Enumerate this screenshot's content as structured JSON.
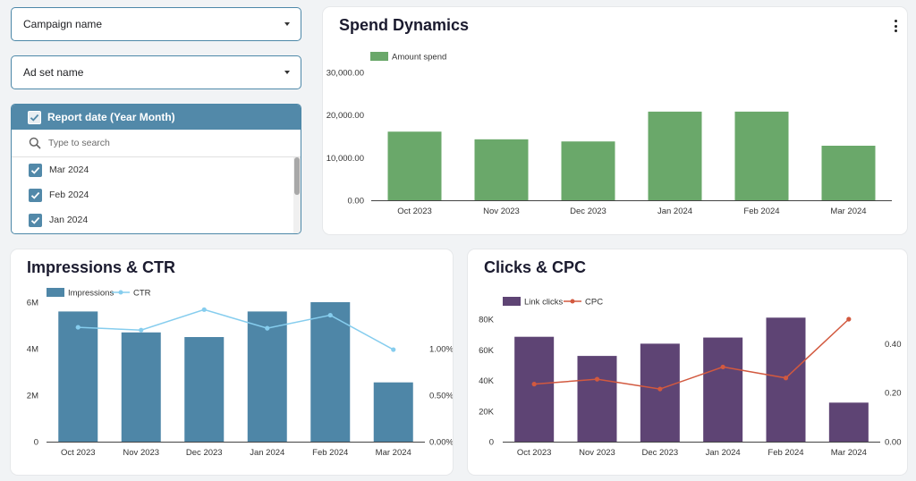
{
  "filters": {
    "campaign_label": "Campaign name",
    "adset_label": "Ad set name",
    "report_date": {
      "title": "Report date (Year Month)",
      "search_placeholder": "Type to search",
      "items": [
        "Mar 2024",
        "Feb 2024",
        "Jan 2024"
      ]
    }
  },
  "colors": {
    "spend": "#6aa86a",
    "impressions": "#4e86a7",
    "ctr": "#86cdee",
    "clicks": "#5e4474",
    "cpc": "#d2593f",
    "accent": "#5289a9"
  },
  "chart_data": [
    {
      "type": "bar",
      "title": "Spend Dynamics",
      "categories": [
        "Oct 2023",
        "Nov 2023",
        "Dec 2023",
        "Jan 2024",
        "Feb 2024",
        "Mar 2024"
      ],
      "series": [
        {
          "name": "Amount spend",
          "values": [
            16100,
            14300,
            13800,
            20800,
            20800,
            12800
          ]
        }
      ],
      "ylim": [
        0,
        30000
      ],
      "yticks": [
        "0.00",
        "10,000.00",
        "20,000.00",
        "30,000.00"
      ],
      "legend": "top-left"
    },
    {
      "type": "bar",
      "title": "Impressions & CTR",
      "categories": [
        "Oct 2023",
        "Nov 2023",
        "Dec 2023",
        "Jan 2024",
        "Feb 2024",
        "Mar 2024"
      ],
      "series": [
        {
          "name": "Impressions",
          "type": "bar",
          "axis": "left",
          "values": [
            5600000,
            4700000,
            4500000,
            5600000,
            6000000,
            2550000
          ]
        },
        {
          "name": "CTR",
          "type": "line",
          "axis": "right",
          "values": [
            1.23,
            1.2,
            1.42,
            1.22,
            1.36,
            0.99
          ]
        }
      ],
      "ylim_left": [
        0,
        6000000
      ],
      "yticks_left": [
        "0",
        "2M",
        "4M",
        "6M"
      ],
      "ylim_right": [
        0,
        1.5
      ],
      "yticks_right": [
        "0.00%",
        "0.50%",
        "1.00%"
      ],
      "legend": "top-left"
    },
    {
      "type": "bar",
      "title": "Clicks & CPC",
      "categories": [
        "Oct 2023",
        "Nov 2023",
        "Dec 2023",
        "Jan 2024",
        "Feb 2024",
        "Mar 2024"
      ],
      "series": [
        {
          "name": "Link clicks",
          "type": "bar",
          "axis": "left",
          "values": [
            68500,
            56000,
            64000,
            68000,
            81000,
            25500
          ]
        },
        {
          "name": "CPC",
          "type": "line",
          "axis": "right",
          "values": [
            0.235,
            0.255,
            0.215,
            0.305,
            0.26,
            0.5
          ]
        }
      ],
      "ylim_left": [
        0,
        80000
      ],
      "yticks_left": [
        "0",
        "20K",
        "40K",
        "60K",
        "80K"
      ],
      "ylim_right": [
        0,
        0.5
      ],
      "yticks_right": [
        "0.00",
        "0.20",
        "0.40"
      ],
      "legend": "top-left"
    }
  ]
}
